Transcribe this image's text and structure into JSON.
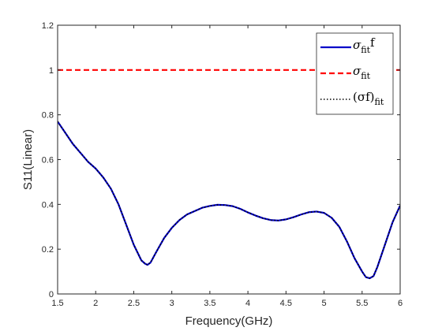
{
  "chart_data": {
    "type": "line",
    "xlabel": "Frequency(GHz)",
    "ylabel": "S11(Linear)",
    "xlim": [
      1.5,
      6
    ],
    "ylim": [
      0,
      1.2
    ],
    "xticks": [
      "1.5",
      "2",
      "2.5",
      "3",
      "3.5",
      "4",
      "4.5",
      "5",
      "5.5",
      "6"
    ],
    "yticks": [
      "0",
      "0.2",
      "0.4",
      "0.6",
      "0.8",
      "1",
      "1.2"
    ],
    "grid": false,
    "legend_position": "top-right",
    "series": [
      {
        "name": "σfitf",
        "legend": {
          "main": "σ",
          "sub": "fit",
          "after": "f"
        },
        "style": "solid",
        "color": "#0000c8",
        "x": [
          1.5,
          1.6,
          1.7,
          1.8,
          1.9,
          2.0,
          2.1,
          2.2,
          2.3,
          2.4,
          2.5,
          2.6,
          2.65,
          2.68,
          2.72,
          2.8,
          2.9,
          3.0,
          3.1,
          3.2,
          3.3,
          3.4,
          3.5,
          3.6,
          3.7,
          3.8,
          3.9,
          4.0,
          4.1,
          4.2,
          4.3,
          4.4,
          4.5,
          4.6,
          4.7,
          4.8,
          4.9,
          5.0,
          5.1,
          5.2,
          5.3,
          5.4,
          5.5,
          5.55,
          5.6,
          5.65,
          5.7,
          5.8,
          5.9,
          6.0
        ],
        "y": [
          0.77,
          0.72,
          0.67,
          0.63,
          0.59,
          0.56,
          0.52,
          0.47,
          0.4,
          0.31,
          0.22,
          0.15,
          0.135,
          0.13,
          0.14,
          0.19,
          0.25,
          0.295,
          0.33,
          0.355,
          0.37,
          0.385,
          0.393,
          0.398,
          0.397,
          0.392,
          0.38,
          0.364,
          0.35,
          0.338,
          0.33,
          0.328,
          0.333,
          0.343,
          0.355,
          0.365,
          0.368,
          0.362,
          0.34,
          0.3,
          0.235,
          0.16,
          0.1,
          0.075,
          0.07,
          0.08,
          0.12,
          0.22,
          0.32,
          0.395
        ]
      },
      {
        "name": "σfit",
        "legend": {
          "main": "σ",
          "sub": "fit",
          "after": ""
        },
        "style": "dashed",
        "color": "#ff0000",
        "x": [
          1.5,
          6.0
        ],
        "y": [
          1.0,
          1.0
        ]
      },
      {
        "name": "(σf)fit",
        "legend": {
          "main": "(σf)",
          "sub": "fit",
          "after": ""
        },
        "style": "dotted",
        "color": "#000000",
        "x": [
          1.5,
          1.6,
          1.7,
          1.8,
          1.9,
          2.0,
          2.1,
          2.2,
          2.3,
          2.4,
          2.5,
          2.6,
          2.65,
          2.68,
          2.72,
          2.8,
          2.9,
          3.0,
          3.1,
          3.2,
          3.3,
          3.4,
          3.5,
          3.6,
          3.7,
          3.8,
          3.9,
          4.0,
          4.1,
          4.2,
          4.3,
          4.4,
          4.5,
          4.6,
          4.7,
          4.8,
          4.9,
          5.0,
          5.1,
          5.2,
          5.3,
          5.4,
          5.5,
          5.55,
          5.6,
          5.65,
          5.7,
          5.8,
          5.9,
          6.0
        ],
        "y": [
          0.77,
          0.72,
          0.67,
          0.63,
          0.59,
          0.56,
          0.52,
          0.47,
          0.4,
          0.31,
          0.22,
          0.15,
          0.135,
          0.13,
          0.14,
          0.19,
          0.25,
          0.295,
          0.33,
          0.355,
          0.37,
          0.385,
          0.393,
          0.398,
          0.397,
          0.392,
          0.38,
          0.364,
          0.35,
          0.338,
          0.33,
          0.328,
          0.333,
          0.343,
          0.355,
          0.365,
          0.368,
          0.362,
          0.34,
          0.3,
          0.235,
          0.16,
          0.1,
          0.075,
          0.07,
          0.08,
          0.12,
          0.22,
          0.32,
          0.395
        ]
      }
    ]
  }
}
